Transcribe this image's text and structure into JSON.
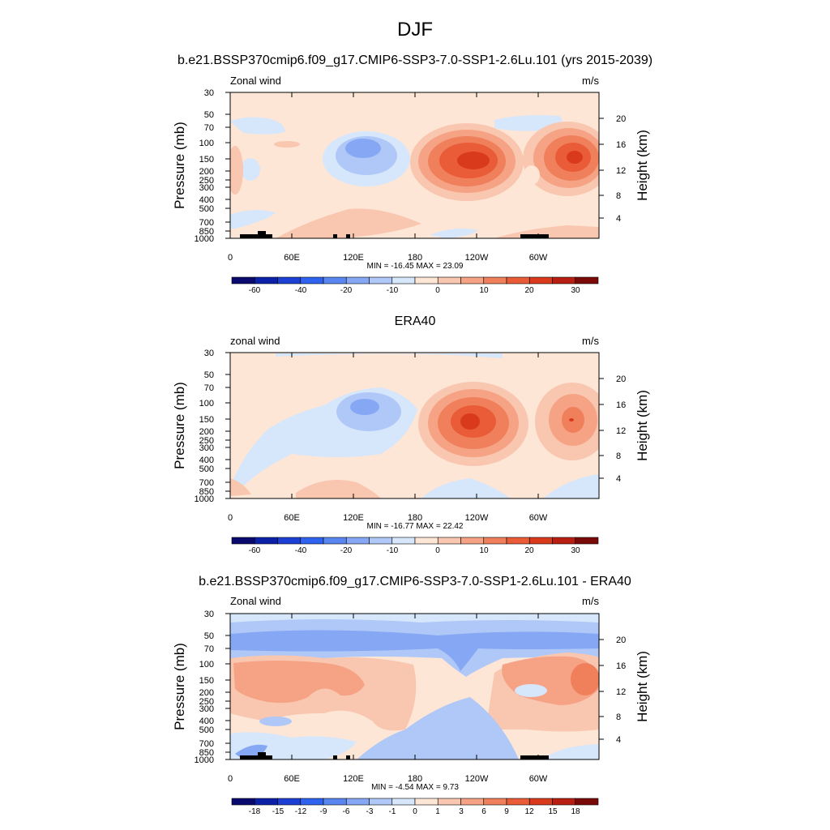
{
  "figure": {
    "title": "DJF"
  },
  "chart_data": [
    {
      "type": "heatmap",
      "panel": "model",
      "title": "b.e21.BSSP370cmip6.f09_g17.CMIP6-SSP3-7.0-SSP1-2.6Lu.101 (yrs 2015-2039)",
      "left_label": "Zonal wind",
      "units": "m/s",
      "ylabel": "Pressure (mb)",
      "y2label": "Height (km)",
      "x_ticks": [
        "0",
        "60E",
        "120E",
        "180",
        "120W",
        "60W"
      ],
      "y_ticks": [
        "30",
        "50",
        "70",
        "100",
        "150",
        "200",
        "250",
        "300",
        "400",
        "500",
        "700",
        "850",
        "1000"
      ],
      "y2_ticks": [
        "20",
        "16",
        "12",
        "8",
        "4"
      ],
      "min_max": "MIN = -16.45  MAX =  23.09",
      "colorbar_labels": [
        "-60",
        "-40",
        "-20",
        "-10",
        "0",
        "10",
        "20",
        "30"
      ]
    },
    {
      "type": "heatmap",
      "panel": "obs",
      "title": "ERA40",
      "left_label": "zonal wind",
      "units": "m/s",
      "ylabel": "Pressure (mb)",
      "y2label": "Height (km)",
      "x_ticks": [
        "0",
        "60E",
        "120E",
        "180",
        "120W",
        "60W"
      ],
      "y_ticks": [
        "30",
        "50",
        "70",
        "100",
        "150",
        "200",
        "250",
        "300",
        "400",
        "500",
        "700",
        "850",
        "1000"
      ],
      "y2_ticks": [
        "20",
        "16",
        "12",
        "8",
        "4"
      ],
      "min_max": "MIN = -16.77  MAX =  22.42",
      "colorbar_labels": [
        "-60",
        "-40",
        "-20",
        "-10",
        "0",
        "10",
        "20",
        "30"
      ]
    },
    {
      "type": "heatmap",
      "panel": "difference",
      "title": "b.e21.BSSP370cmip6.f09_g17.CMIP6-SSP3-7.0-SSP1-2.6Lu.101 - ERA40",
      "left_label": "Zonal wind",
      "units": "m/s",
      "ylabel": "Pressure (mb)",
      "y2label": "Height (km)",
      "x_ticks": [
        "0",
        "60E",
        "120E",
        "180",
        "120W",
        "60W"
      ],
      "y_ticks": [
        "30",
        "50",
        "70",
        "100",
        "150",
        "200",
        "250",
        "300",
        "400",
        "500",
        "700",
        "850",
        "1000"
      ],
      "y2_ticks": [
        "20",
        "16",
        "12",
        "8",
        "4"
      ],
      "min_max": "MIN =  -4.54  MAX =   9.73",
      "colorbar_labels": [
        "-18",
        "-15",
        "-12",
        "-9",
        "-6",
        "-3",
        "-1",
        "0",
        "1",
        "3",
        "6",
        "9",
        "12",
        "15",
        "18"
      ]
    }
  ],
  "colors": {
    "background_warm": "#fde6d6",
    "background_cool": "#d4e6fb",
    "colorbar": [
      "#0a0a6e",
      "#0b22a8",
      "#1c3fd4",
      "#2f63ef",
      "#5a86f2",
      "#86a8f4",
      "#b0c8f8",
      "#d6e6fb",
      "#fde6d6",
      "#f9c6b0",
      "#f5a384",
      "#f07f5c",
      "#e95c37",
      "#da3a1c",
      "#b81f12",
      "#7a0a08"
    ]
  }
}
